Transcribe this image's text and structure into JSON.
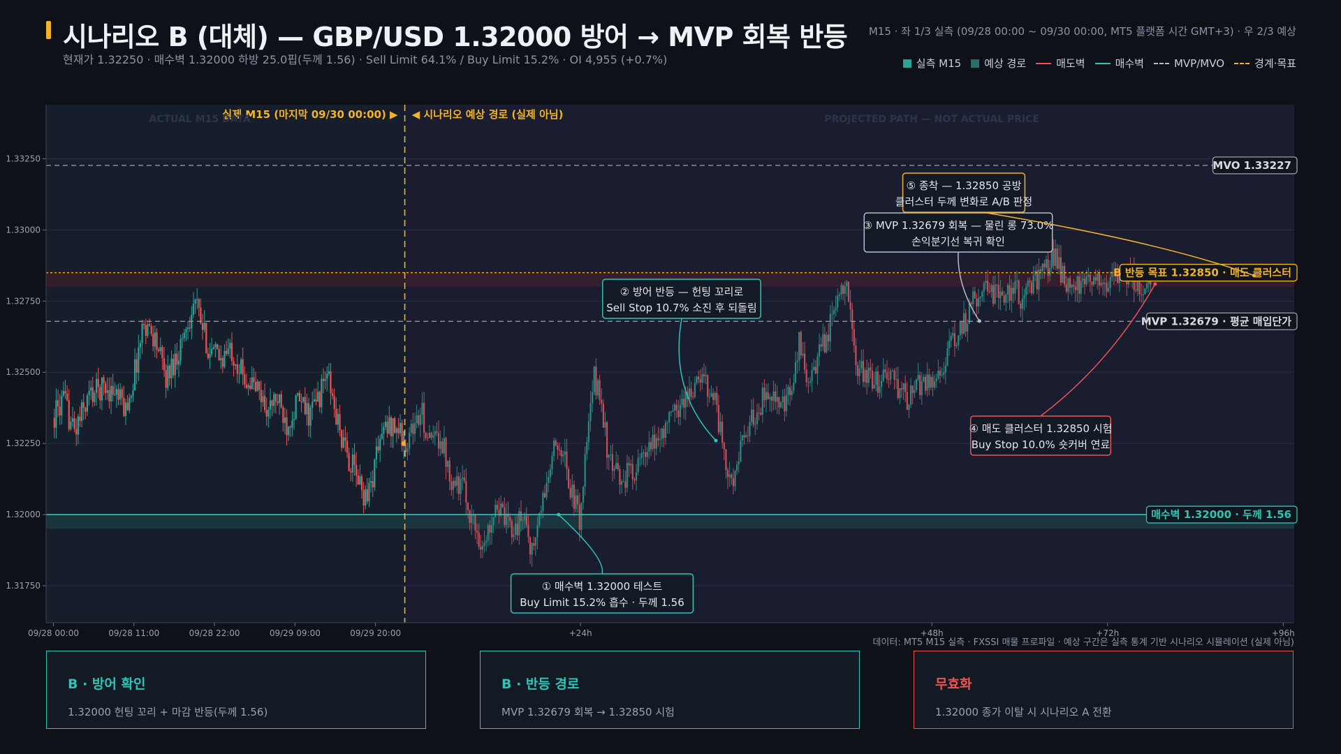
{
  "header": {
    "title": "시나리오 B (대체) — GBP/USD 1.32000 방어 → MVP 회복 반등",
    "subtitle": "현재가 1.32250 · 매수벽 1.32000 하방 25.0핍(두께 1.56) · Sell Limit 64.1% / Buy Limit 15.2% · OI 4,955 (+0.7%)",
    "meta": "M15 · 좌 1/3 실측 (09/28 00:00 ~ 09/30 00:00, MT5 플랫폼 시간 GMT+3) · 우 2/3 예상",
    "accent_color": "#f2b32a"
  },
  "legend": [
    {
      "label": "실측 M15",
      "kind": "box",
      "color": "#26a69a"
    },
    {
      "label": "예상 경로",
      "kind": "box",
      "color": "#2a6e68"
    },
    {
      "label": "매도벽",
      "kind": "line",
      "color": "#ef5350"
    },
    {
      "label": "매수벽",
      "kind": "line",
      "color": "#2ec4b6"
    },
    {
      "label": "MVP/MVO",
      "kind": "dash",
      "color": "#b8bec9"
    },
    {
      "label": "경계·목표",
      "kind": "dash",
      "color": "#f2b32a"
    }
  ],
  "chart_data": {
    "type": "candlestick",
    "symbol": "GBP/USD",
    "timeframe": "M15",
    "ylim": [
      1.3162,
      1.3344
    ],
    "yticks": [
      "1.31750",
      "1.32000",
      "1.32250",
      "1.32500",
      "1.32750",
      "1.33000",
      "1.33250"
    ],
    "ytick_values": [
      1.3175,
      1.32,
      1.3225,
      1.325,
      1.3275,
      1.33,
      1.3325
    ],
    "xticks": [
      "09/28 00:00",
      "09/28 11:00",
      "09/28 22:00",
      "09/29 09:00",
      "09/29 20:00",
      "+24h",
      "+48h",
      "+72h",
      "+96h"
    ],
    "xtick_hours": [
      0,
      11,
      22,
      33,
      44,
      72,
      120,
      144,
      168
    ],
    "x_range_hours": [
      -1,
      169.5
    ],
    "boundary_hours": 48,
    "actual_label": "실제 M15 (마지막 09/30 00:00) ▶",
    "projected_label": "◀ 시나리오 예상 경로 (실제 아님)",
    "actual_watermark": "ACTUAL M15 DATA",
    "projected_watermark": "PROJECTED PATH — NOT ACTUAL PRICE",
    "footnote": "데이터: MT5 M15 실측 · FXSSI 매물 프로파일 · 예상 구간은 실측 통계 기반 시나리오 시뮬레이션 (실제 아님)",
    "levels": [
      {
        "name": "MVO",
        "value": 1.33227,
        "label": "MVO 1.33227",
        "style": "dash",
        "color": "#9aa1ad"
      },
      {
        "name": "target",
        "value": 1.3285,
        "label": "B 반등 목표 1.32850 · 매도 클러스터",
        "style": "dot",
        "color": "#f2b32a"
      },
      {
        "name": "MVP",
        "value": 1.32679,
        "label": "MVP 1.32679 · 평균 매입단가",
        "style": "dash",
        "color": "#9aa1ad"
      },
      {
        "name": "buy_wall",
        "value": 1.32,
        "label": "매수벽 1.32000 · 두께 1.56",
        "style": "solid",
        "color": "#2ec4b6"
      }
    ],
    "actual_path": [
      [
        0,
        1.3234
      ],
      [
        1.5,
        1.324
      ],
      [
        3,
        1.3229
      ],
      [
        5,
        1.3242
      ],
      [
        7,
        1.3245
      ],
      [
        8.5,
        1.3243
      ],
      [
        10,
        1.3237
      ],
      [
        11,
        1.3247
      ],
      [
        12.5,
        1.3268
      ],
      [
        14,
        1.3262
      ],
      [
        15.5,
        1.3248
      ],
      [
        17,
        1.3256
      ],
      [
        18.5,
        1.3268
      ],
      [
        19.5,
        1.3275
      ],
      [
        20.5,
        1.3265
      ],
      [
        21.5,
        1.3257
      ],
      [
        23,
        1.3255
      ],
      [
        24.5,
        1.3258
      ],
      [
        26,
        1.3249
      ],
      [
        28,
        1.3244
      ],
      [
        29.5,
        1.3236
      ],
      [
        30.5,
        1.3241
      ],
      [
        32,
        1.3232
      ],
      [
        33.5,
        1.324
      ],
      [
        35,
        1.3235
      ],
      [
        36.5,
        1.3242
      ],
      [
        37.5,
        1.325
      ],
      [
        38.5,
        1.3237
      ],
      [
        40,
        1.3222
      ],
      [
        41.5,
        1.3214
      ],
      [
        42.5,
        1.3207
      ],
      [
        43.5,
        1.321
      ],
      [
        44.5,
        1.3225
      ],
      [
        45.5,
        1.323
      ],
      [
        46.5,
        1.3232
      ],
      [
        47.5,
        1.3229
      ],
      [
        48,
        1.3225
      ]
    ],
    "projected_path": [
      [
        48,
        1.3225
      ],
      [
        49.5,
        1.3232
      ],
      [
        50.5,
        1.3235
      ],
      [
        51.5,
        1.3225
      ],
      [
        53,
        1.3228
      ],
      [
        54.5,
        1.3213
      ],
      [
        56,
        1.321
      ],
      [
        57.5,
        1.3197
      ],
      [
        59,
        1.3188
      ],
      [
        60.5,
        1.3205
      ],
      [
        62,
        1.3196
      ],
      [
        63.5,
        1.3196
      ],
      [
        64.5,
        1.32
      ],
      [
        65.5,
        1.3186
      ],
      [
        67,
        1.3205
      ],
      [
        68.5,
        1.3222
      ],
      [
        69.5,
        1.3225
      ],
      [
        70.5,
        1.3212
      ],
      [
        72,
        1.3198
      ],
      [
        73,
        1.3225
      ],
      [
        74,
        1.3248
      ],
      [
        75,
        1.324
      ],
      [
        76,
        1.3218
      ],
      [
        77.5,
        1.3212
      ],
      [
        79,
        1.3215
      ],
      [
        81,
        1.322
      ],
      [
        83,
        1.3228
      ],
      [
        85,
        1.3236
      ],
      [
        87,
        1.3243
      ],
      [
        89,
        1.3248
      ],
      [
        90.5,
        1.3241
      ],
      [
        91.5,
        1.3225
      ],
      [
        92.5,
        1.321
      ],
      [
        93.5,
        1.3218
      ],
      [
        95,
        1.323
      ],
      [
        96.5,
        1.3238
      ],
      [
        98,
        1.3245
      ],
      [
        99.5,
        1.3236
      ],
      [
        101,
        1.3243
      ],
      [
        102,
        1.326
      ],
      [
        103.5,
        1.3245
      ],
      [
        105,
        1.3258
      ],
      [
        106.5,
        1.3268
      ],
      [
        107.5,
        1.3279
      ],
      [
        108.5,
        1.3285
      ],
      [
        109.5,
        1.3255
      ],
      [
        111,
        1.3248
      ],
      [
        112.5,
        1.3246
      ],
      [
        114,
        1.325
      ],
      [
        115.5,
        1.3244
      ],
      [
        117,
        1.324
      ],
      [
        118.5,
        1.3246
      ],
      [
        120,
        1.3247
      ],
      [
        121.5,
        1.3252
      ],
      [
        123,
        1.326
      ],
      [
        124.5,
        1.3267
      ],
      [
        126,
        1.3276
      ],
      [
        127.5,
        1.3282
      ],
      [
        128.5,
        1.3278
      ],
      [
        130,
        1.3276
      ],
      [
        131,
        1.328
      ],
      [
        132.5,
        1.3276
      ],
      [
        134,
        1.3282
      ],
      [
        135.5,
        1.3285
      ],
      [
        137,
        1.3292
      ],
      [
        138,
        1.3283
      ],
      [
        139.5,
        1.328
      ],
      [
        141,
        1.3279
      ],
      [
        142.5,
        1.3285
      ],
      [
        144,
        1.3281
      ],
      [
        145.5,
        1.3283
      ],
      [
        147,
        1.3285
      ],
      [
        148.5,
        1.328
      ],
      [
        150,
        1.3281
      ]
    ],
    "annotations": [
      {
        "id": 1,
        "text1": "① 매수벽 1.32000 테스트",
        "text2": "Buy Limit 15.2% 흡수 · 두께 1.56",
        "color": "#2ec4b6",
        "anchor_hours": 69,
        "anchor_price": 1.32
      },
      {
        "id": 2,
        "text1": "② 방어 반등 — 헌팅 꼬리로",
        "text2": "Sell Stop 10.7% 소진 후 되돌림",
        "color": "#2ec4b6",
        "anchor_hours": 90.5,
        "anchor_price": 1.3226
      },
      {
        "id": 3,
        "text1": "③ MVP 1.32679 회복 — 물린 롱 73.0%",
        "text2": "손익분기선 복귀 확인",
        "color": "#b8bec9",
        "anchor_hours": 126.5,
        "anchor_price": 1.3268
      },
      {
        "id": 4,
        "text1": "④ 매도 클러스터 1.32850 시험",
        "text2": "Buy Stop 10.0% 숏커버 연료",
        "color": "#ef5350",
        "anchor_hours": 150.5,
        "anchor_price": 1.3281
      },
      {
        "id": 5,
        "text1": "⑤ 종착 — 1.32850 공방",
        "text2": "클러스터 두께 변화로 A/B 판정",
        "color": "#f2b32a",
        "anchor_hours": 164,
        "anchor_price": 1.3284
      }
    ]
  },
  "cards": [
    {
      "title": "B · 방어 확인",
      "body": "1.32000 헌팅 꼬리 + 마감 반등(두께 1.56)",
      "color": "#2ec4b6"
    },
    {
      "title": "B · 반등 경로",
      "body": "MVP 1.32679 회복 → 1.32850 시험",
      "color": "#2ec4b6"
    },
    {
      "title": "무효화",
      "body": "1.32000 종가 이탈 시 시나리오 A 전환",
      "color": "#ef5350"
    }
  ]
}
